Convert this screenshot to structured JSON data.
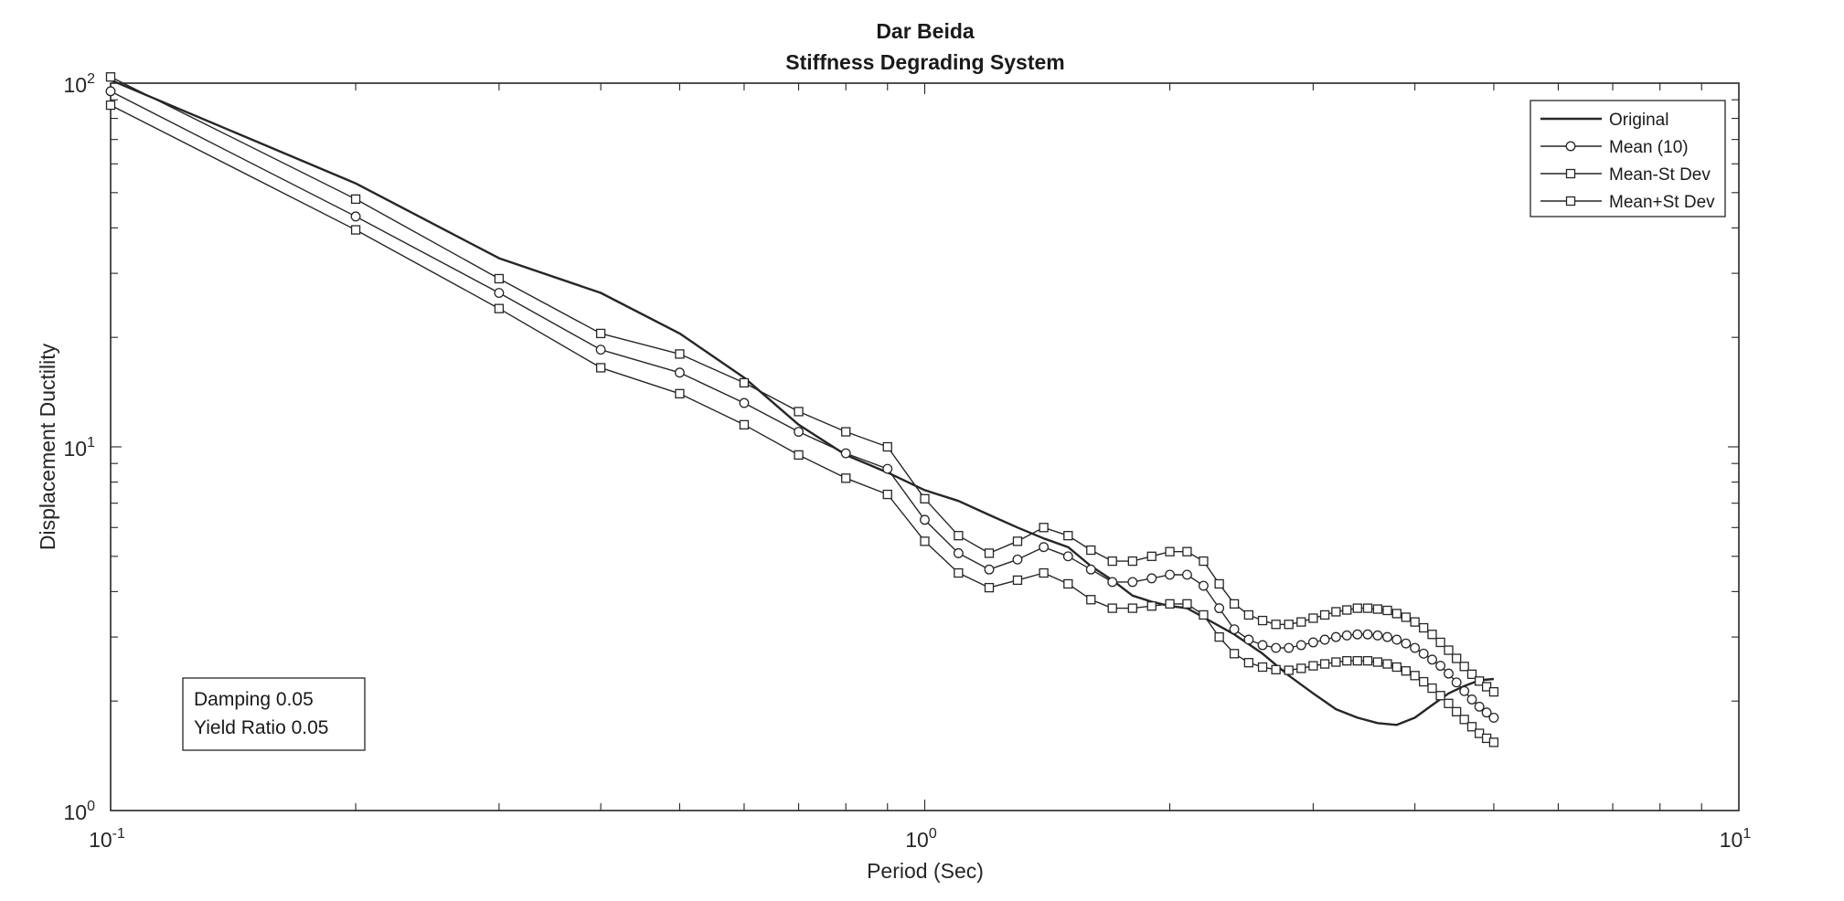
{
  "colors": {
    "line": "#262626",
    "axes": "#262626",
    "background": "#ffffff"
  },
  "chart_data": {
    "type": "line",
    "title": "Dar Beida",
    "subtitle": "Stiffness Degrading System",
    "xlabel": "Period (Sec)",
    "ylabel": "Displacement Ductility",
    "xscale": "log",
    "yscale": "log",
    "xlim": [
      0.1,
      10
    ],
    "ylim": [
      1,
      100
    ],
    "xticks": [
      {
        "base": "10",
        "exp": "-1",
        "value": 0.1
      },
      {
        "base": "10",
        "exp": "0",
        "value": 1
      },
      {
        "base": "10",
        "exp": "1",
        "value": 10
      }
    ],
    "yticks": [
      {
        "base": "10",
        "exp": "0",
        "value": 1
      },
      {
        "base": "10",
        "exp": "1",
        "value": 10
      },
      {
        "base": "10",
        "exp": "2",
        "value": 100
      }
    ],
    "legend_position": "top-right",
    "grid": false,
    "annotation": [
      "Damping 0.05",
      "Yield Ratio 0.05"
    ],
    "series": [
      {
        "name": "Original",
        "marker": "none",
        "x": [
          0.1,
          0.2,
          0.3,
          0.4,
          0.5,
          0.6,
          0.7,
          0.8,
          0.9,
          1.0,
          1.1,
          1.2,
          1.3,
          1.4,
          1.5,
          1.6,
          1.7,
          1.8,
          1.9,
          2.0,
          2.1,
          2.2,
          2.4,
          2.6,
          2.8,
          3.0,
          3.2,
          3.4,
          3.6,
          3.8,
          4.0,
          4.2,
          4.4,
          4.6,
          4.8,
          5.0
        ],
        "y": [
          102,
          53,
          33,
          26.5,
          20.5,
          15.5,
          11.5,
          9.5,
          8.5,
          7.6,
          7.1,
          6.5,
          6.0,
          5.6,
          5.3,
          4.7,
          4.3,
          3.9,
          3.75,
          3.65,
          3.6,
          3.4,
          3.05,
          2.7,
          2.35,
          2.1,
          1.9,
          1.8,
          1.74,
          1.72,
          1.8,
          1.95,
          2.1,
          2.2,
          2.28,
          2.3
        ]
      },
      {
        "name": "Mean (10)",
        "marker": "circle",
        "x": [
          0.1,
          0.2,
          0.3,
          0.4,
          0.5,
          0.6,
          0.7,
          0.8,
          0.9,
          1.0,
          1.1,
          1.2,
          1.3,
          1.4,
          1.5,
          1.6,
          1.7,
          1.8,
          1.9,
          2.0,
          2.1,
          2.2,
          2.3,
          2.4,
          2.5,
          2.6,
          2.7,
          2.8,
          2.9,
          3.0,
          3.1,
          3.2,
          3.3,
          3.4,
          3.5,
          3.6,
          3.7,
          3.8,
          3.9,
          4.0,
          4.1,
          4.2,
          4.3,
          4.4,
          4.5,
          4.6,
          4.7,
          4.8,
          4.9,
          5.0
        ],
        "y": [
          95,
          43,
          26.5,
          18.5,
          16,
          13.2,
          11,
          9.6,
          8.7,
          6.3,
          5.1,
          4.6,
          4.9,
          5.3,
          5.0,
          4.6,
          4.25,
          4.25,
          4.35,
          4.45,
          4.45,
          4.15,
          3.6,
          3.15,
          2.95,
          2.85,
          2.8,
          2.8,
          2.85,
          2.9,
          2.95,
          3.0,
          3.03,
          3.05,
          3.05,
          3.03,
          3.0,
          2.95,
          2.88,
          2.8,
          2.7,
          2.6,
          2.5,
          2.38,
          2.25,
          2.13,
          2.02,
          1.93,
          1.86,
          1.8
        ]
      },
      {
        "name": "Mean-St Dev",
        "marker": "square",
        "x": [
          0.1,
          0.2,
          0.3,
          0.4,
          0.5,
          0.6,
          0.7,
          0.8,
          0.9,
          1.0,
          1.1,
          1.2,
          1.3,
          1.4,
          1.5,
          1.6,
          1.7,
          1.8,
          1.9,
          2.0,
          2.1,
          2.2,
          2.3,
          2.4,
          2.5,
          2.6,
          2.7,
          2.8,
          2.9,
          3.0,
          3.1,
          3.2,
          3.3,
          3.4,
          3.5,
          3.6,
          3.7,
          3.8,
          3.9,
          4.0,
          4.1,
          4.2,
          4.3,
          4.4,
          4.5,
          4.6,
          4.7,
          4.8,
          4.9,
          5.0
        ],
        "y": [
          87,
          39.5,
          24,
          16.5,
          14,
          11.5,
          9.5,
          8.2,
          7.4,
          5.5,
          4.5,
          4.1,
          4.3,
          4.5,
          4.2,
          3.8,
          3.6,
          3.6,
          3.65,
          3.7,
          3.7,
          3.45,
          3.0,
          2.7,
          2.55,
          2.48,
          2.44,
          2.43,
          2.46,
          2.5,
          2.53,
          2.56,
          2.58,
          2.58,
          2.58,
          2.56,
          2.53,
          2.48,
          2.42,
          2.35,
          2.26,
          2.17,
          2.07,
          1.97,
          1.87,
          1.78,
          1.7,
          1.63,
          1.58,
          1.54
        ]
      },
      {
        "name": "Mean+St Dev",
        "marker": "square",
        "x": [
          0.1,
          0.2,
          0.3,
          0.4,
          0.5,
          0.6,
          0.7,
          0.8,
          0.9,
          1.0,
          1.1,
          1.2,
          1.3,
          1.4,
          1.5,
          1.6,
          1.7,
          1.8,
          1.9,
          2.0,
          2.1,
          2.2,
          2.3,
          2.4,
          2.5,
          2.6,
          2.7,
          2.8,
          2.9,
          3.0,
          3.1,
          3.2,
          3.3,
          3.4,
          3.5,
          3.6,
          3.7,
          3.8,
          3.9,
          4.0,
          4.1,
          4.2,
          4.3,
          4.4,
          4.5,
          4.6,
          4.7,
          4.8,
          4.9,
          5.0
        ],
        "y": [
          104,
          48,
          29,
          20.5,
          18,
          15,
          12.5,
          11,
          10,
          7.2,
          5.7,
          5.1,
          5.5,
          6.0,
          5.7,
          5.2,
          4.85,
          4.85,
          5.0,
          5.15,
          5.15,
          4.85,
          4.2,
          3.7,
          3.45,
          3.33,
          3.25,
          3.25,
          3.3,
          3.38,
          3.45,
          3.52,
          3.56,
          3.6,
          3.6,
          3.58,
          3.55,
          3.48,
          3.4,
          3.3,
          3.18,
          3.05,
          2.9,
          2.76,
          2.62,
          2.49,
          2.37,
          2.27,
          2.19,
          2.12
        ]
      }
    ]
  }
}
